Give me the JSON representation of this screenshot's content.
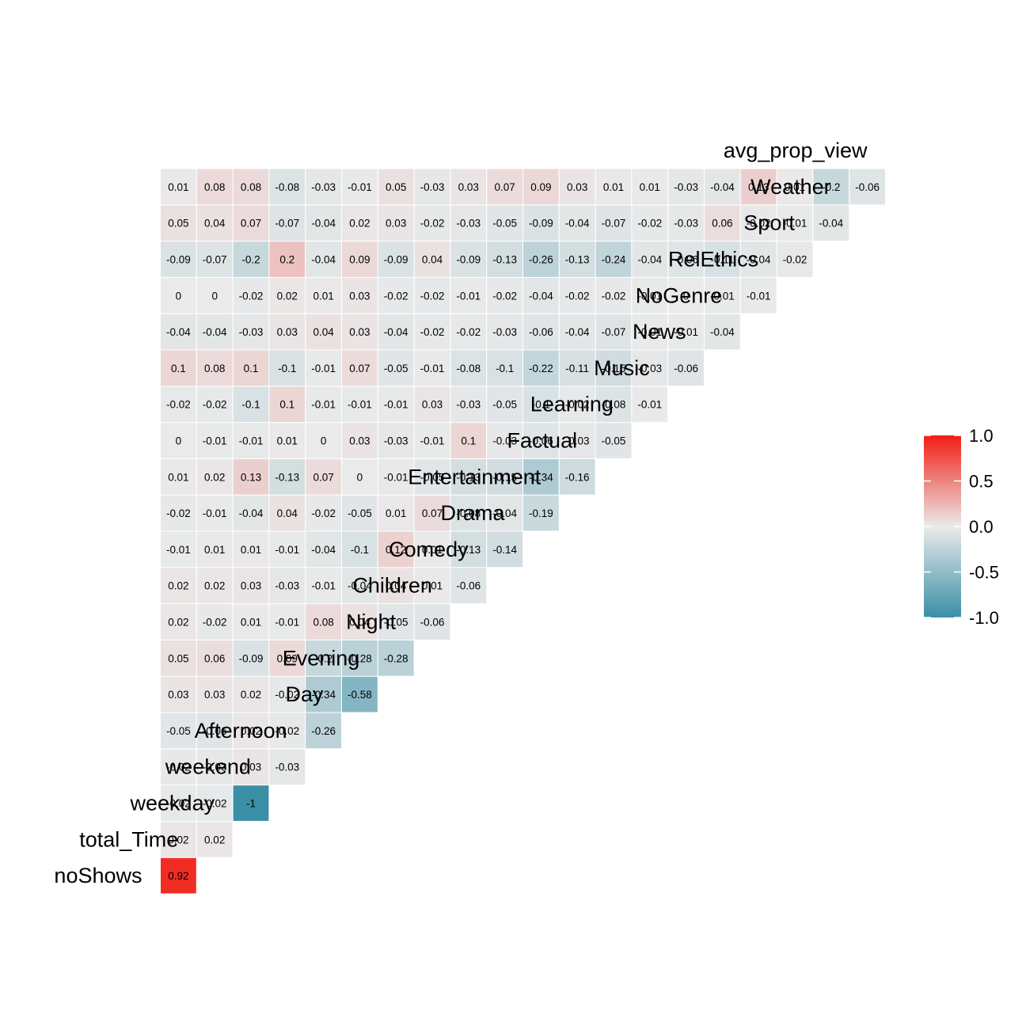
{
  "chart_data": {
    "type": "heatmap",
    "title": "",
    "xlabel": "",
    "ylabel": "",
    "variables": [
      "noShows",
      "total_Time",
      "weekday",
      "weekend",
      "Afternoon",
      "Day",
      "Evening",
      "Night",
      "Children",
      "Comedy",
      "Drama",
      "Entertainment",
      "Factual",
      "Learning",
      "Music",
      "News",
      "NoGenre",
      "RelEthics",
      "Sport",
      "Weather",
      "avg_prop_view"
    ],
    "matrix": [
      [
        0.92
      ],
      [
        0.02,
        0.02
      ],
      [
        -0.02,
        -0.02,
        -1
      ],
      [
        -0.02,
        -0.03,
        0.03,
        -0.03
      ],
      [
        -0.05,
        -0.06,
        0.02,
        -0.02,
        -0.26
      ],
      [
        0.03,
        0.03,
        0.02,
        -0.02,
        -0.34,
        -0.58
      ],
      [
        0.05,
        0.06,
        -0.09,
        0.09,
        -0.2,
        -0.28,
        -0.28
      ],
      [
        0.02,
        -0.02,
        0.01,
        -0.01,
        0.08,
        0.04,
        -0.05,
        -0.06
      ],
      [
        0.02,
        0.02,
        0.03,
        -0.03,
        -0.01,
        -0.04,
        0.04,
        0.01,
        -0.06
      ],
      [
        -0.01,
        0.01,
        0.01,
        -0.01,
        -0.04,
        -0.1,
        0.12,
        0.01,
        -0.13,
        -0.14
      ],
      [
        -0.02,
        -0.01,
        -0.04,
        0.04,
        -0.02,
        -0.05,
        0.01,
        0.07,
        -0.08,
        -0.04,
        -0.19
      ],
      [
        0.01,
        0.02,
        0.13,
        -0.13,
        0.07,
        0,
        -0.01,
        -0.05,
        -0.13,
        -0.15,
        -0.34,
        -0.16
      ],
      [
        0,
        -0.01,
        -0.01,
        0.01,
        0,
        0.03,
        -0.03,
        -0.01,
        0.1,
        -0.03,
        -0.06,
        -0.03,
        -0.05
      ],
      [
        -0.02,
        -0.02,
        -0.1,
        0.1,
        -0.01,
        -0.01,
        -0.01,
        0.03,
        -0.03,
        -0.05,
        -0.1,
        -0.02,
        -0.08,
        -0.01
      ],
      [
        0.1,
        0.08,
        0.1,
        -0.1,
        -0.01,
        0.07,
        -0.05,
        -0.01,
        -0.08,
        -0.1,
        -0.22,
        -0.11,
        -0.15,
        -0.03,
        -0.06
      ],
      [
        -0.04,
        -0.04,
        -0.03,
        0.03,
        0.04,
        0.03,
        -0.04,
        -0.02,
        -0.02,
        -0.03,
        -0.06,
        -0.04,
        -0.07,
        -0.01,
        -0.01,
        -0.04
      ],
      [
        0,
        0,
        -0.02,
        0.02,
        0.01,
        0.03,
        -0.02,
        -0.02,
        -0.01,
        -0.02,
        -0.04,
        -0.02,
        -0.02,
        -0.01,
        0,
        -0.01,
        -0.01
      ],
      [
        -0.09,
        -0.07,
        -0.2,
        0.2,
        -0.04,
        0.09,
        -0.09,
        0.04,
        -0.09,
        -0.13,
        -0.26,
        -0.13,
        -0.24,
        -0.04,
        -0.06,
        -0.11,
        -0.04,
        -0.02
      ],
      [
        0.05,
        0.04,
        0.07,
        -0.07,
        -0.04,
        0.02,
        0.03,
        -0.02,
        -0.03,
        -0.05,
        -0.09,
        -0.04,
        -0.07,
        -0.02,
        -0.03,
        0.06,
        -0.02,
        -0.01,
        -0.04
      ],
      [
        0.01,
        0.08,
        0.08,
        -0.08,
        -0.03,
        -0.01,
        0.05,
        -0.03,
        0.03,
        0.07,
        0.09,
        0.03,
        0.01,
        0.01,
        -0.03,
        -0.04,
        0.13,
        0.01,
        -0.2,
        -0.06
      ]
    ],
    "legend": {
      "position": "right",
      "ticks": [
        "1.0",
        "0.5",
        "0.0",
        "-0.5",
        "-1.0"
      ],
      "colors": {
        "low": "#3A8FA6",
        "mid": "#EAEAEA",
        "high": "#F21D12"
      }
    }
  }
}
